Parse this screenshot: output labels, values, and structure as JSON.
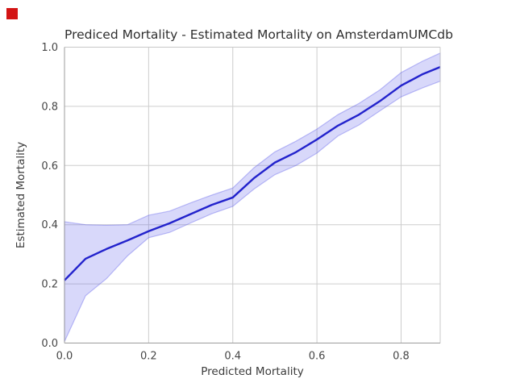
{
  "marker": {
    "color": "#d31414"
  },
  "chart_data": {
    "type": "line",
    "title": "Prediced Mortality - Estimated Mortality on AmsterdamUMCdb",
    "xlabel": "Predicted Mortality",
    "ylabel": "Estimated Mortality",
    "xlim": [
      0.0,
      0.893
    ],
    "ylim": [
      0.0,
      1.0
    ],
    "grid": true,
    "legend": "none",
    "xtick_values": [
      0.0,
      0.2,
      0.4,
      0.6,
      0.8
    ],
    "xtick_labels": [
      "0.0",
      "0.2",
      "0.4",
      "0.6",
      "0.8"
    ],
    "ytick_values": [
      0.0,
      0.2,
      0.4,
      0.6,
      0.8,
      1.0
    ],
    "ytick_labels": [
      "0.0",
      "0.2",
      "0.4",
      "0.6",
      "0.8",
      "1.0"
    ],
    "series": [
      {
        "name": "calibration-curve",
        "color": "#2222cc",
        "x": [
          0.0,
          0.05,
          0.1,
          0.15,
          0.2,
          0.25,
          0.3,
          0.35,
          0.4,
          0.45,
          0.5,
          0.55,
          0.6,
          0.65,
          0.7,
          0.75,
          0.8,
          0.85,
          0.893
        ],
        "y": [
          0.212,
          0.285,
          0.318,
          0.347,
          0.378,
          0.405,
          0.436,
          0.467,
          0.492,
          0.557,
          0.61,
          0.645,
          0.688,
          0.735,
          0.772,
          0.818,
          0.87,
          0.908,
          0.933
        ]
      }
    ],
    "band": {
      "name": "confidence-band",
      "fill": "rgba(90,90,235,0.24)",
      "edge": "rgba(90,90,235,0.38)",
      "x": [
        0.0,
        0.05,
        0.1,
        0.15,
        0.2,
        0.25,
        0.3,
        0.35,
        0.4,
        0.45,
        0.5,
        0.55,
        0.6,
        0.65,
        0.7,
        0.75,
        0.8,
        0.85,
        0.893
      ],
      "lower": [
        0.005,
        0.16,
        0.218,
        0.295,
        0.356,
        0.374,
        0.406,
        0.437,
        0.462,
        0.52,
        0.569,
        0.6,
        0.642,
        0.7,
        0.737,
        0.785,
        0.832,
        0.862,
        0.885
      ],
      "upper": [
        0.41,
        0.4,
        0.398,
        0.4,
        0.432,
        0.446,
        0.474,
        0.5,
        0.524,
        0.592,
        0.646,
        0.682,
        0.723,
        0.772,
        0.81,
        0.856,
        0.914,
        0.952,
        0.98
      ]
    },
    "colors": {
      "grid": "#cdcdcd",
      "spine_left_bottom": "#9c9c9c",
      "spine_top_right": "#c8c8c8",
      "tick_text": "#464646",
      "background": "#ffffff"
    }
  }
}
